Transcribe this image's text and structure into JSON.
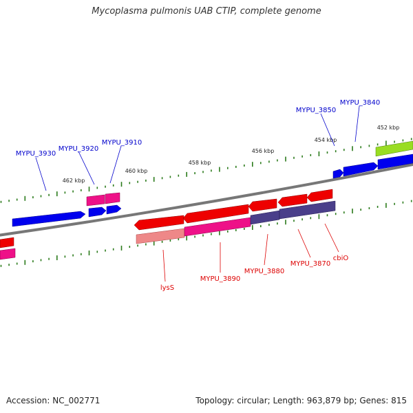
{
  "title": "Mycoplasma pulmonis UAB CTIP, complete genome",
  "footer": {
    "accession": "Accession: NC_002771",
    "stats": "Topology: circular; Length: 963,879 bp; Genes: 815"
  },
  "colors": {
    "forward_label": "#0000cc",
    "reverse_label": "#dd0000",
    "backbone": "#7a7a7a",
    "tick": "#2a7a1a",
    "blue_feature": "#0000ee",
    "red_feature": "#ee0000",
    "magenta_feature": "#ee1188",
    "navy_feature": "#4a3f8a",
    "salmon_feature": "#ee8888",
    "green_feature": "#99dd22"
  },
  "kbp_labels": [
    "462 kbp",
    "460 kbp",
    "458 kbp",
    "456 kbp",
    "454 kbp",
    "452 kbp"
  ],
  "forward_gene_labels": [
    "MYPU_3930",
    "MYPU_3920",
    "MYPU_3910",
    "MYPU_3850",
    "MYPU_3840"
  ],
  "reverse_gene_labels": [
    "lysS",
    "MYPU_3890",
    "MYPU_3880",
    "MYPU_3870",
    "cbiO"
  ]
}
